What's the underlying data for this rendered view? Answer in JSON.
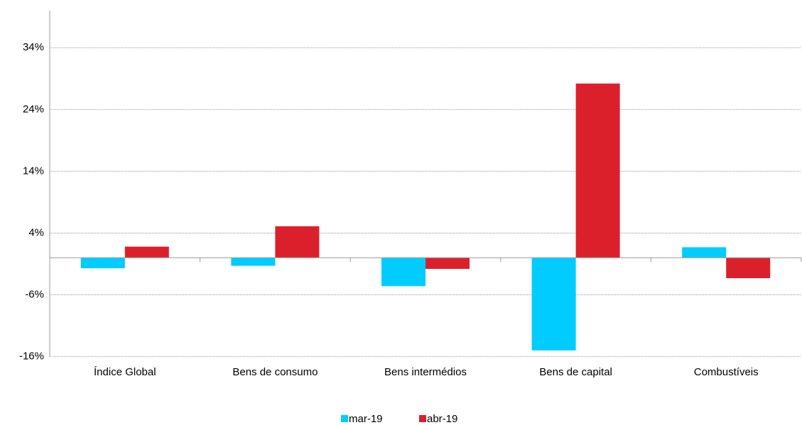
{
  "chart_data": {
    "type": "bar",
    "categories": [
      "Índice Global",
      "Bens de consumo",
      "Bens intermédios",
      "Bens de capital",
      "Combustíveis"
    ],
    "series": [
      {
        "name": "mar-19",
        "color": "#00ccff",
        "values": [
          -1.7,
          -1.3,
          -4.6,
          -15.0,
          1.7
        ]
      },
      {
        "name": "abr-19",
        "color": "#dc202b",
        "values": [
          1.8,
          5.1,
          -1.8,
          28.2,
          -3.3
        ]
      }
    ],
    "ylim": [
      -16,
      40
    ],
    "yticks": [
      {
        "value": -16,
        "label": "-16%"
      },
      {
        "value": -6,
        "label": "-6%"
      },
      {
        "value": 4,
        "label": "4%"
      },
      {
        "value": 14,
        "label": "14%"
      },
      {
        "value": 24,
        "label": "24%"
      },
      {
        "value": 34,
        "label": "34%"
      }
    ],
    "grid": true
  }
}
